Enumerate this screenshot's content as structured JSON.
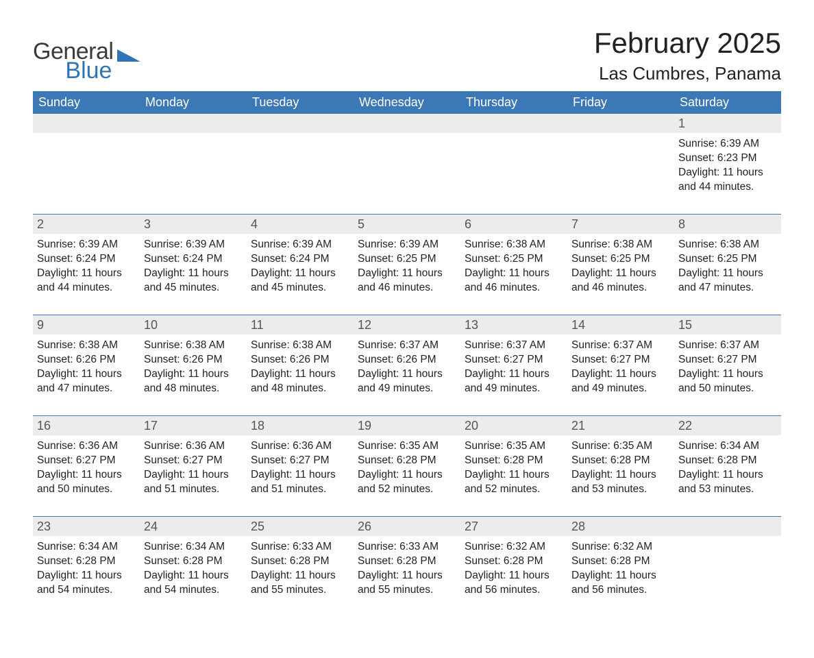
{
  "brand": {
    "word1": "General",
    "word2": "Blue",
    "word1_color": "#3a3a3a",
    "word2_color": "#2f75b5",
    "mark_color": "#2f75b5"
  },
  "title": "February 2025",
  "location": "Las Cumbres, Panama",
  "colors": {
    "header_bg": "#3b78b5",
    "header_text": "#ffffff",
    "daynum_bg": "#ececec",
    "daynum_text": "#555555",
    "body_text": "#222222",
    "rule": "#3b78b5",
    "page_bg": "#ffffff"
  },
  "fonts": {
    "title_pt": 42,
    "location_pt": 26,
    "th_pt": 18,
    "daynum_pt": 18,
    "body_pt": 15.5,
    "logo_pt": 34
  },
  "dow": [
    "Sunday",
    "Monday",
    "Tuesday",
    "Wednesday",
    "Thursday",
    "Friday",
    "Saturday"
  ],
  "weeks": [
    [
      null,
      null,
      null,
      null,
      null,
      null,
      {
        "d": "1",
        "sunrise": "Sunrise: 6:39 AM",
        "sunset": "Sunset: 6:23 PM",
        "dl1": "Daylight: 11 hours",
        "dl2": "and 44 minutes."
      }
    ],
    [
      {
        "d": "2",
        "sunrise": "Sunrise: 6:39 AM",
        "sunset": "Sunset: 6:24 PM",
        "dl1": "Daylight: 11 hours",
        "dl2": "and 44 minutes."
      },
      {
        "d": "3",
        "sunrise": "Sunrise: 6:39 AM",
        "sunset": "Sunset: 6:24 PM",
        "dl1": "Daylight: 11 hours",
        "dl2": "and 45 minutes."
      },
      {
        "d": "4",
        "sunrise": "Sunrise: 6:39 AM",
        "sunset": "Sunset: 6:24 PM",
        "dl1": "Daylight: 11 hours",
        "dl2": "and 45 minutes."
      },
      {
        "d": "5",
        "sunrise": "Sunrise: 6:39 AM",
        "sunset": "Sunset: 6:25 PM",
        "dl1": "Daylight: 11 hours",
        "dl2": "and 46 minutes."
      },
      {
        "d": "6",
        "sunrise": "Sunrise: 6:38 AM",
        "sunset": "Sunset: 6:25 PM",
        "dl1": "Daylight: 11 hours",
        "dl2": "and 46 minutes."
      },
      {
        "d": "7",
        "sunrise": "Sunrise: 6:38 AM",
        "sunset": "Sunset: 6:25 PM",
        "dl1": "Daylight: 11 hours",
        "dl2": "and 46 minutes."
      },
      {
        "d": "8",
        "sunrise": "Sunrise: 6:38 AM",
        "sunset": "Sunset: 6:25 PM",
        "dl1": "Daylight: 11 hours",
        "dl2": "and 47 minutes."
      }
    ],
    [
      {
        "d": "9",
        "sunrise": "Sunrise: 6:38 AM",
        "sunset": "Sunset: 6:26 PM",
        "dl1": "Daylight: 11 hours",
        "dl2": "and 47 minutes."
      },
      {
        "d": "10",
        "sunrise": "Sunrise: 6:38 AM",
        "sunset": "Sunset: 6:26 PM",
        "dl1": "Daylight: 11 hours",
        "dl2": "and 48 minutes."
      },
      {
        "d": "11",
        "sunrise": "Sunrise: 6:38 AM",
        "sunset": "Sunset: 6:26 PM",
        "dl1": "Daylight: 11 hours",
        "dl2": "and 48 minutes."
      },
      {
        "d": "12",
        "sunrise": "Sunrise: 6:37 AM",
        "sunset": "Sunset: 6:26 PM",
        "dl1": "Daylight: 11 hours",
        "dl2": "and 49 minutes."
      },
      {
        "d": "13",
        "sunrise": "Sunrise: 6:37 AM",
        "sunset": "Sunset: 6:27 PM",
        "dl1": "Daylight: 11 hours",
        "dl2": "and 49 minutes."
      },
      {
        "d": "14",
        "sunrise": "Sunrise: 6:37 AM",
        "sunset": "Sunset: 6:27 PM",
        "dl1": "Daylight: 11 hours",
        "dl2": "and 49 minutes."
      },
      {
        "d": "15",
        "sunrise": "Sunrise: 6:37 AM",
        "sunset": "Sunset: 6:27 PM",
        "dl1": "Daylight: 11 hours",
        "dl2": "and 50 minutes."
      }
    ],
    [
      {
        "d": "16",
        "sunrise": "Sunrise: 6:36 AM",
        "sunset": "Sunset: 6:27 PM",
        "dl1": "Daylight: 11 hours",
        "dl2": "and 50 minutes."
      },
      {
        "d": "17",
        "sunrise": "Sunrise: 6:36 AM",
        "sunset": "Sunset: 6:27 PM",
        "dl1": "Daylight: 11 hours",
        "dl2": "and 51 minutes."
      },
      {
        "d": "18",
        "sunrise": "Sunrise: 6:36 AM",
        "sunset": "Sunset: 6:27 PM",
        "dl1": "Daylight: 11 hours",
        "dl2": "and 51 minutes."
      },
      {
        "d": "19",
        "sunrise": "Sunrise: 6:35 AM",
        "sunset": "Sunset: 6:28 PM",
        "dl1": "Daylight: 11 hours",
        "dl2": "and 52 minutes."
      },
      {
        "d": "20",
        "sunrise": "Sunrise: 6:35 AM",
        "sunset": "Sunset: 6:28 PM",
        "dl1": "Daylight: 11 hours",
        "dl2": "and 52 minutes."
      },
      {
        "d": "21",
        "sunrise": "Sunrise: 6:35 AM",
        "sunset": "Sunset: 6:28 PM",
        "dl1": "Daylight: 11 hours",
        "dl2": "and 53 minutes."
      },
      {
        "d": "22",
        "sunrise": "Sunrise: 6:34 AM",
        "sunset": "Sunset: 6:28 PM",
        "dl1": "Daylight: 11 hours",
        "dl2": "and 53 minutes."
      }
    ],
    [
      {
        "d": "23",
        "sunrise": "Sunrise: 6:34 AM",
        "sunset": "Sunset: 6:28 PM",
        "dl1": "Daylight: 11 hours",
        "dl2": "and 54 minutes."
      },
      {
        "d": "24",
        "sunrise": "Sunrise: 6:34 AM",
        "sunset": "Sunset: 6:28 PM",
        "dl1": "Daylight: 11 hours",
        "dl2": "and 54 minutes."
      },
      {
        "d": "25",
        "sunrise": "Sunrise: 6:33 AM",
        "sunset": "Sunset: 6:28 PM",
        "dl1": "Daylight: 11 hours",
        "dl2": "and 55 minutes."
      },
      {
        "d": "26",
        "sunrise": "Sunrise: 6:33 AM",
        "sunset": "Sunset: 6:28 PM",
        "dl1": "Daylight: 11 hours",
        "dl2": "and 55 minutes."
      },
      {
        "d": "27",
        "sunrise": "Sunrise: 6:32 AM",
        "sunset": "Sunset: 6:28 PM",
        "dl1": "Daylight: 11 hours",
        "dl2": "and 56 minutes."
      },
      {
        "d": "28",
        "sunrise": "Sunrise: 6:32 AM",
        "sunset": "Sunset: 6:28 PM",
        "dl1": "Daylight: 11 hours",
        "dl2": "and 56 minutes."
      },
      null
    ]
  ]
}
